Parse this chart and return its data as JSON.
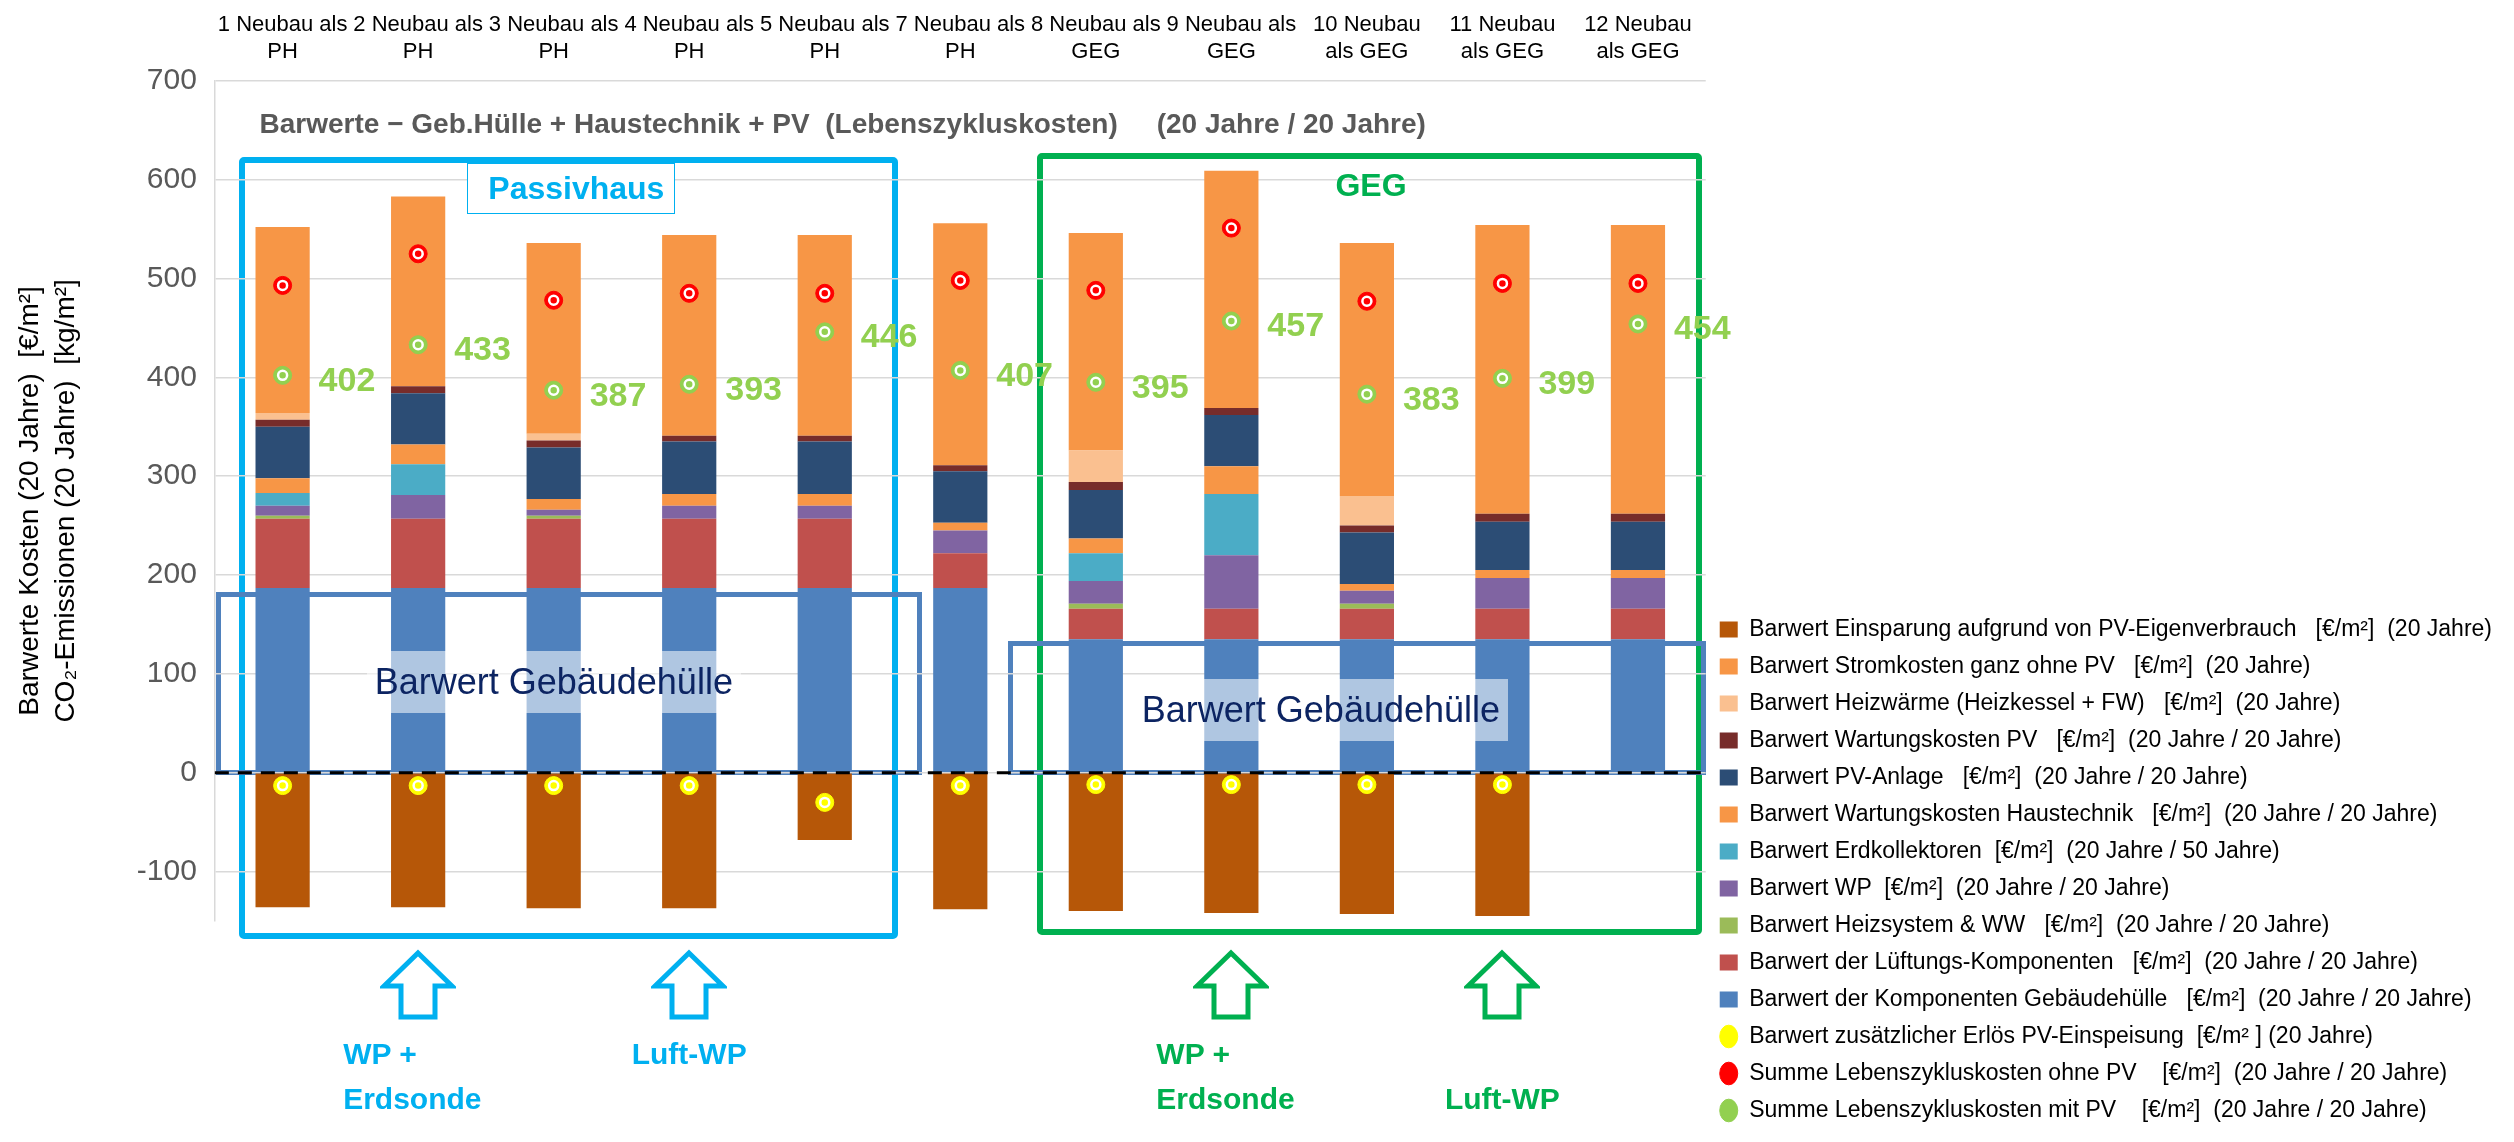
{
  "chart_data": {
    "type": "bar",
    "stacked": true,
    "title": "Barwerte − Geb.Hülle + Haustechnik + PV  (Lebenszykluskosten)     (20 Jahre / 20 Jahre)",
    "ylabel": "Barwerte Kosten (20 Jahre)  [€/m²]\nCO₂-Emissionen (20 Jahre)  [kg/m²]",
    "categories": [
      "1 Neubau als PH",
      "2 Neubau als PH",
      "3 Neubau als PH",
      "4 Neubau als PH",
      "5 Neubau als PH",
      "7 Neubau als PH",
      "8 Neubau als GEG",
      "9 Neubau als GEG",
      "10 Neubau als GEG",
      "11 Neubau als GEG",
      "12 Neubau als GEG"
    ],
    "series": [
      {
        "name": "Barwert der Komponenten Gebäudehülle   [€/m²]  (20 Jahre / 20 Jahre)",
        "color": "#4f81bd",
        "values": [
          187,
          187,
          187,
          187,
          187,
          187,
          135,
          135,
          135,
          135,
          135
        ]
      },
      {
        "name": "Barwert der Lüftungs-Komponenten   [€/m²]  (20 Jahre / 20 Jahre)",
        "color": "#c0504d",
        "values": [
          70,
          70,
          70,
          70,
          70,
          35,
          31,
          31,
          31,
          31,
          31
        ]
      },
      {
        "name": "Barwert Heizsystem & WW   [€/m²]  (20 Jahre / 20 Jahre)",
        "color": "#9bbb59",
        "values": [
          3,
          null,
          3,
          null,
          null,
          null,
          5,
          null,
          5,
          null,
          null
        ]
      },
      {
        "name": "Barwert WP  [€/m²]  (20 Jahre / 20 Jahre)",
        "color": "#8064a2",
        "values": [
          10,
          24,
          6,
          13,
          13,
          23,
          23,
          54,
          13,
          31,
          31
        ]
      },
      {
        "name": "Barwert Erdkollektoren  [€/m²]  (20 Jahre / 50 Jahre)",
        "color": "#4bacc6",
        "values": [
          13,
          31,
          null,
          null,
          null,
          null,
          28,
          62,
          null,
          null,
          null
        ]
      },
      {
        "name": "Barwert Wartungskosten Haustechnik   [€/m²]  (20 Jahre / 20 Jahre)",
        "color": "#f79646",
        "values": [
          15,
          20,
          11,
          12,
          12,
          8,
          15,
          28,
          7,
          8,
          8
        ]
      },
      {
        "name": "Barwert PV-Anlage   [€/m²]  (20 Jahre / 20 Jahre)",
        "color": "#2c4d75",
        "values": [
          52,
          52,
          52,
          53,
          53,
          52,
          49,
          52,
          52,
          49,
          49
        ]
      },
      {
        "name": "Barwert Wartungskosten PV   [€/m²]  (20 Jahre / 20 Jahre)",
        "color": "#772c2a",
        "values": [
          7,
          7,
          7,
          6,
          6,
          6,
          8,
          7,
          7,
          8,
          8
        ]
      },
      {
        "name": "Barwert Heizwärme (Heizkessel + FW)   [€/m²]  (20 Jahre)",
        "color": "#fac090",
        "values": [
          7,
          null,
          7,
          null,
          null,
          null,
          32,
          null,
          30,
          null,
          null
        ]
      },
      {
        "name": "Barwert Stromkosten ganz ohne PV   [€/m²]  (20 Jahre)",
        "color": "#f79646",
        "values": [
          188,
          192,
          193,
          203,
          203,
          245,
          220,
          240,
          256,
          292,
          292
        ]
      },
      {
        "name": "Barwert Einsparung aufgrund von PV-Eigenverbrauch   [€/m²]  (20 Jahre)",
        "color": "#b65708",
        "values": [
          -136,
          -136,
          -137,
          -137,
          -68,
          -138,
          -140,
          -142,
          -143,
          -145,
          null
        ]
      },
      {
        "name": "Barwert zusätzlicher Erlös PV-Einspeisung  [€/m² ] (20 Jahre)",
        "type": "scatter",
        "marker": "circle",
        "color": "#ffff00",
        "x": [
          "1 Neubau als PH",
          "2 Neubau als PH",
          "3 Neubau als PH",
          "4 Neubau als PH",
          "5 Neubau als PH",
          "7 Neubau als PH",
          "8 Neubau als GEG",
          "9 Neubau als GEG",
          "10 Neubau als GEG",
          "11 Neubau als GEG",
          "12 Neubau als GEG"
        ],
        "values": [
          -13,
          -13,
          -13,
          -13,
          -30,
          -13,
          -12,
          -12,
          -12,
          -12,
          null
        ]
      },
      {
        "name": "Summe Lebenszykluskosten ohne PV    [€/m²]  (20 Jahre / 20 Jahre)",
        "type": "scatter",
        "marker": "circle",
        "color": "#ff0000",
        "x": [
          "1 Neubau als PH",
          "2 Neubau als PH",
          "3 Neubau als PH",
          "4 Neubau als PH",
          "5 Neubau als PH",
          "7 Neubau als PH",
          "8 Neubau als GEG",
          "9 Neubau als GEG",
          "10 Neubau als GEG",
          "11 Neubau als GEG",
          "12 Neubau als GEG"
        ],
        "values": [
          493,
          525,
          478,
          485,
          485,
          498,
          488,
          551,
          477,
          495,
          495
        ]
      },
      {
        "name": "Summe Lebenszykluskosten mit PV    [€/m²]  (20 Jahre / 20 Jahre)",
        "type": "scatter",
        "marker": "circle",
        "color": "#92d050",
        "x": [
          "1 Neubau als PH",
          "2 Neubau als PH",
          "3 Neubau als PH",
          "4 Neubau als PH",
          "5 Neubau als PH",
          "7 Neubau als PH",
          "8 Neubau als GEG",
          "9 Neubau als GEG",
          "10 Neubau als GEG",
          "11 Neubau als GEG",
          "12 Neubau als GEG"
        ],
        "values": [
          402,
          433,
          387,
          393,
          446,
          407,
          395,
          457,
          383,
          399,
          454
        ],
        "value_labels": [
          "402",
          "433",
          "387",
          "393",
          "446",
          "407",
          "395",
          "457",
          "383",
          "399",
          "454"
        ]
      }
    ],
    "ylim": [
      -150,
      700
    ],
    "yticks": [
      -100,
      0,
      100,
      200,
      300,
      400,
      500,
      600,
      700
    ],
    "grid": "y",
    "legend": "bottom right",
    "ref_lines": [
      {
        "axis": "y",
        "value": 0,
        "color": "#000000",
        "line_style": "dashed"
      }
    ],
    "annotations": [
      "Passivhaus",
      "GEG",
      "WP + Erdsonde",
      "Luft-WP",
      "WP + Erdsonde",
      "Luft-WP",
      "Barwert Gebäudehülle",
      "Barwert Gebäudehülle"
    ]
  }
}
